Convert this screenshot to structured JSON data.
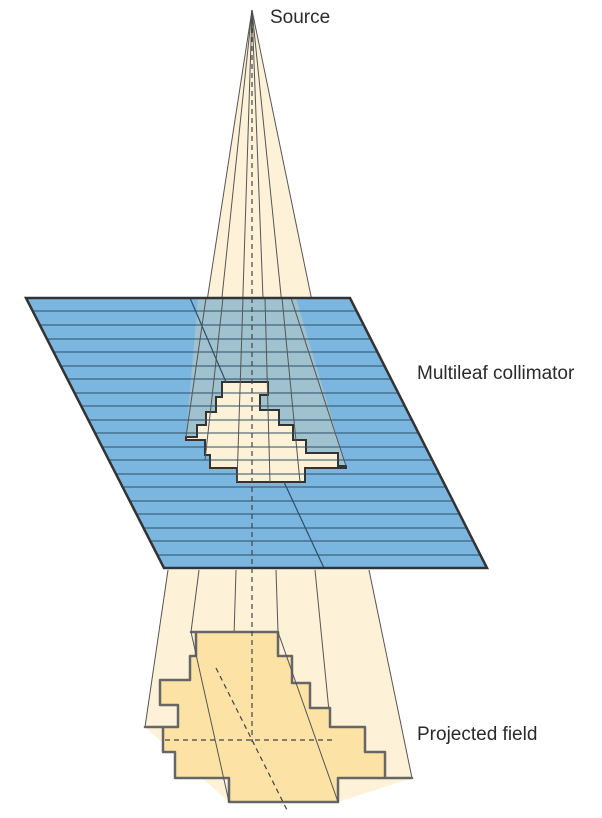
{
  "labels": {
    "source": "Source",
    "collimator": "Multileaf collimator",
    "field": "Projected field"
  },
  "colors": {
    "beam_fill": "#fdf1d8",
    "field_fill": "#fde2a6",
    "leaf_fill": "#7ab6e0",
    "leaf_behind_beam": "#a7c3ca",
    "outline": "#3a3a3a"
  }
}
